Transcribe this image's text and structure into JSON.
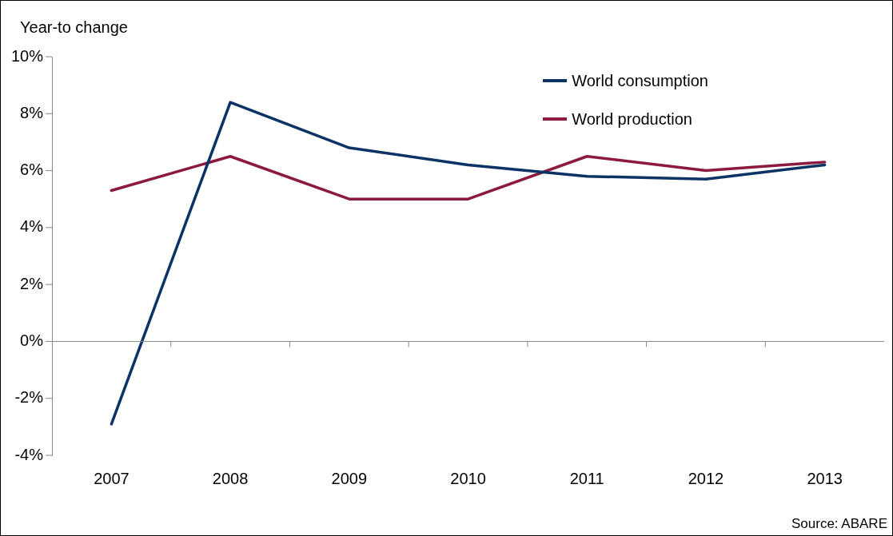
{
  "chart_data": {
    "type": "line",
    "ylabel": "Year-to change",
    "categories": [
      "2007",
      "2008",
      "2009",
      "2010",
      "2011",
      "2012",
      "2013"
    ],
    "series": [
      {
        "name": "World consumption",
        "color": "#0b3366",
        "values": [
          -2.9,
          8.4,
          6.8,
          6.2,
          5.8,
          5.7,
          6.2
        ]
      },
      {
        "name": "World production",
        "color": "#8c1a3f",
        "values": [
          5.3,
          6.5,
          5.0,
          5.0,
          6.5,
          6.0,
          6.3
        ]
      }
    ],
    "ylim": [
      -4,
      10
    ],
    "yticks": [
      {
        "value": -4,
        "label": "-4%"
      },
      {
        "value": -2,
        "label": "-2%"
      },
      {
        "value": 0,
        "label": "0%"
      },
      {
        "value": 2,
        "label": "2%"
      },
      {
        "value": 4,
        "label": "4%"
      },
      {
        "value": 6,
        "label": "6%"
      },
      {
        "value": 8,
        "label": "8%"
      },
      {
        "value": 10,
        "label": "10%"
      }
    ],
    "ref_lines": [
      {
        "axis": "y",
        "value": 0,
        "color": "#888888"
      }
    ],
    "grid": false,
    "legend": "top right",
    "marker": "none",
    "line_style": "solid",
    "annotations": [
      "Source: ABARE"
    ]
  }
}
